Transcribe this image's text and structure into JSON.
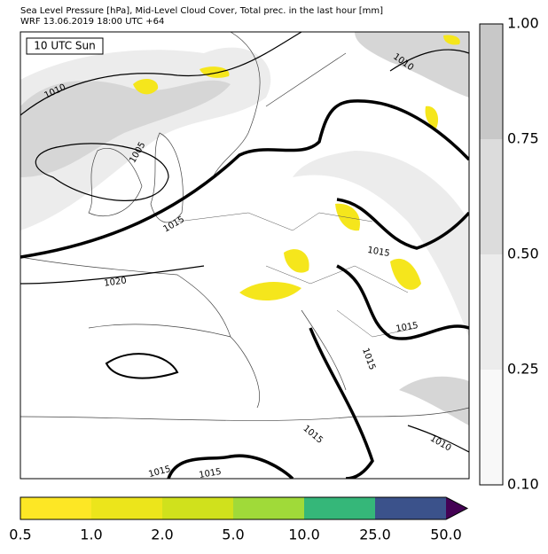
{
  "header": {
    "line1": "Sea Level Pressure [hPa], Mid-Level Cloud Cover, Total prec. in the last hour [mm]",
    "line2": "WRF 13.06.2019 18:00 UTC +64"
  },
  "map": {
    "time_label": "10 UTC Sun",
    "isobar_labels": [
      "1010",
      "1010",
      "1005",
      "1015",
      "1020",
      "1015",
      "1015",
      "1015",
      "1015",
      "1010",
      "1015",
      "1015"
    ]
  },
  "cloud_colorbar": {
    "labels": [
      "1.00",
      "0.75",
      "0.50",
      "0.25",
      "0.10"
    ]
  },
  "precip_colorbar": {
    "labels": [
      "0.5",
      "1.0",
      "2.0",
      "5.0",
      "10.0",
      "25.0",
      "50.0"
    ]
  }
}
